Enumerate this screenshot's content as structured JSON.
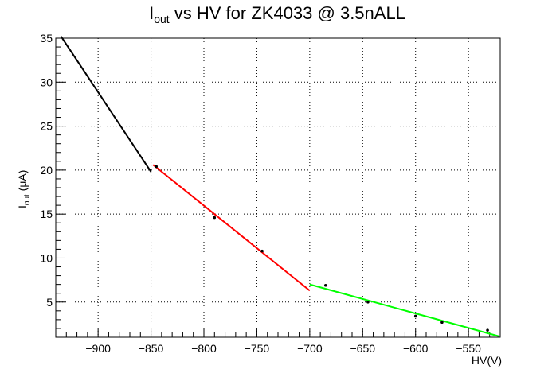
{
  "chart_data": {
    "type": "scatter",
    "title": "I",
    "title_sub": "out",
    "title_rest": " vs HV for ZK4033 @ 3.5nALL",
    "xlabel": "HV(V)",
    "ylabel_main": "I",
    "ylabel_sub": "out",
    "ylabel_rest": " (μA)",
    "xlim": [
      -940,
      -520
    ],
    "ylim": [
      1,
      35
    ],
    "xticks": [
      -900,
      -850,
      -800,
      -750,
      -700,
      -650,
      -600,
      -550
    ],
    "xtick_labels": [
      "−900",
      "−850",
      "−800",
      "−750",
      "−700",
      "−650",
      "−600",
      "−550"
    ],
    "yticks": [
      5,
      10,
      15,
      20,
      25,
      30,
      35
    ],
    "ytick_labels": [
      "5",
      "10",
      "15",
      "20",
      "25",
      "30",
      "35"
    ],
    "grid": true,
    "points": [
      {
        "x": -845,
        "y": 20.4
      },
      {
        "x": -790,
        "y": 14.6
      },
      {
        "x": -745,
        "y": 10.8
      },
      {
        "x": -685,
        "y": 6.9
      },
      {
        "x": -645,
        "y": 5.0
      },
      {
        "x": -600,
        "y": 3.4
      },
      {
        "x": -575,
        "y": 2.7
      },
      {
        "x": -532,
        "y": 1.8
      }
    ],
    "series": [
      {
        "color": "#000000",
        "x": [
          -935,
          -850
        ],
        "y": [
          35.2,
          19.8
        ]
      },
      {
        "color": "#ff0000",
        "x": [
          -848,
          -700
        ],
        "y": [
          20.6,
          6.3
        ]
      },
      {
        "color": "#00ff00",
        "x": [
          -700,
          -521
        ],
        "y": [
          7.0,
          1.1
        ]
      }
    ]
  }
}
